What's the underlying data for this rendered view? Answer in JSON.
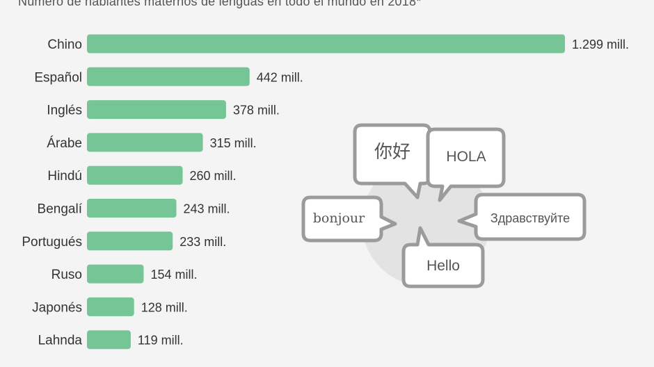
{
  "subtitle": "Número de hablantes maternos de lenguas en todo el mundo en 2018*",
  "colors": {
    "bar": "#76c597",
    "background": "#f4f4f4",
    "bubble_stroke": "#9b9b9b"
  },
  "chart_data": {
    "type": "bar",
    "orientation": "horizontal",
    "categories": [
      "Chino",
      "Español",
      "Inglés",
      "Árabe",
      "Hindú",
      "Bengalí",
      "Portugués",
      "Ruso",
      "Japonés",
      "Lahnda"
    ],
    "values": [
      1299,
      442,
      378,
      315,
      260,
      243,
      233,
      154,
      128,
      119
    ],
    "value_labels": [
      "1.299 mill.",
      "442 mill.",
      "378 mill.",
      "315 mill.",
      "260 mill.",
      "243 mill.",
      "233 mill.",
      "154 mill.",
      "128 mill.",
      "119 mill."
    ],
    "unit": "mill.",
    "grid": false
  },
  "illustration": {
    "greetings": [
      "你好",
      "HOLA",
      "bonjour",
      "Здравствуйте",
      "Hello"
    ]
  }
}
